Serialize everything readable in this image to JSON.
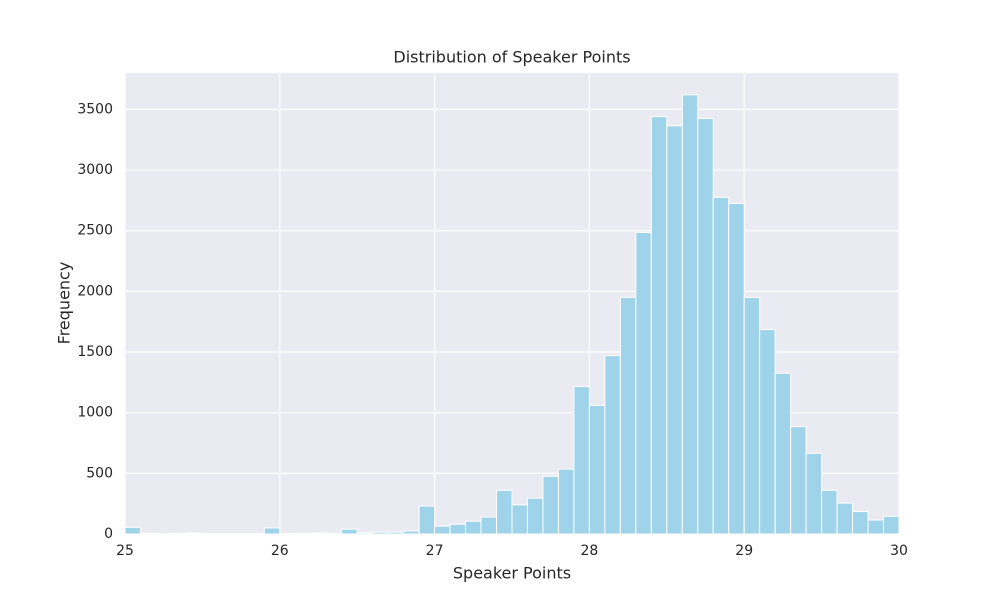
{
  "chart_data": {
    "type": "histogram",
    "title": "Distribution of Speaker Points",
    "x_label": "Speaker Points",
    "y_label": "Frequency",
    "bins": [
      25.0,
      25.1,
      25.2,
      25.3,
      25.4,
      25.5,
      25.6,
      25.7,
      25.8,
      25.9,
      26.0,
      26.1,
      26.2,
      26.3,
      26.4,
      26.5,
      26.6,
      26.7,
      26.8,
      26.9,
      27.0,
      27.1,
      27.2,
      27.3,
      27.4,
      27.5,
      27.6,
      27.7,
      27.8,
      27.9,
      28.0,
      28.1,
      28.2,
      28.3,
      28.4,
      28.5,
      28.6,
      28.7,
      28.8,
      28.9,
      29.0,
      29.1,
      29.2,
      29.3,
      29.4,
      29.5,
      29.6,
      29.7,
      29.8,
      29.9,
      30.0
    ],
    "counts": [
      55,
      5,
      3,
      5,
      8,
      3,
      3,
      3,
      3,
      50,
      5,
      5,
      8,
      5,
      40,
      10,
      15,
      15,
      25,
      230,
      65,
      80,
      105,
      140,
      360,
      240,
      295,
      475,
      535,
      1215,
      1060,
      1470,
      1950,
      2485,
      3440,
      3365,
      3620,
      3425,
      2775,
      2725,
      1950,
      1685,
      1325,
      885,
      665,
      360,
      255,
      185,
      115,
      145
    ],
    "color": "#9fd3ea",
    "xlim": [
      25,
      30
    ],
    "xticks": [
      25,
      26,
      27,
      28,
      29,
      30
    ],
    "ylim": [
      0,
      3800
    ],
    "yticks": [
      0,
      500,
      1000,
      1500,
      2000,
      2500,
      3000,
      3500
    ],
    "grid": true
  }
}
